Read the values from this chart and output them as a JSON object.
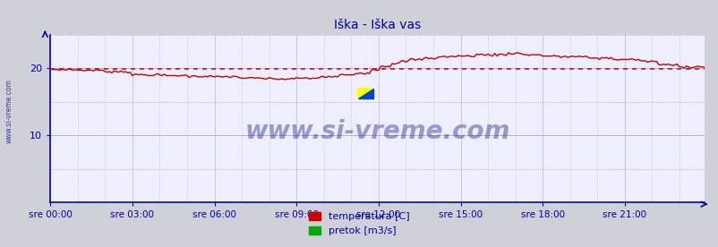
{
  "title": "Iška - Iška vas",
  "title_color": "#000099",
  "title_fontsize": 10,
  "bg_color": "#d0d0d8",
  "plot_bg_color": "#eeeeff",
  "grid_color_major_h": "#aaaacc",
  "grid_color_minor": "#cc9999",
  "border_color": "#0000bb",
  "tick_color": "#0000aa",
  "watermark_color": "#1a1a8c",
  "watermark_text": "www.si-vreme.com",
  "side_watermark": "www.si-vreme.com",
  "xtick_labels": [
    "sre 00:00",
    "sre 03:00",
    "sre 06:00",
    "sre 09:00",
    "sre 12:00",
    "sre 15:00",
    "sre 18:00",
    "sre 21:00"
  ],
  "xtick_positions": [
    0,
    36,
    72,
    108,
    144,
    180,
    216,
    252
  ],
  "ytick_values": [
    10,
    20
  ],
  "ylim": [
    0,
    25
  ],
  "xlim_min": 0,
  "xlim_max": 287,
  "legend_labels": [
    "temperatura [C]",
    "pretok [m3/s]"
  ],
  "legend_colors": [
    "#cc0000",
    "#00aa00"
  ],
  "temp_color": "#cc0000",
  "flow_color": "#00aa00",
  "avg_color": "#cc0000",
  "avg_value": 19.85,
  "n_points": 288
}
